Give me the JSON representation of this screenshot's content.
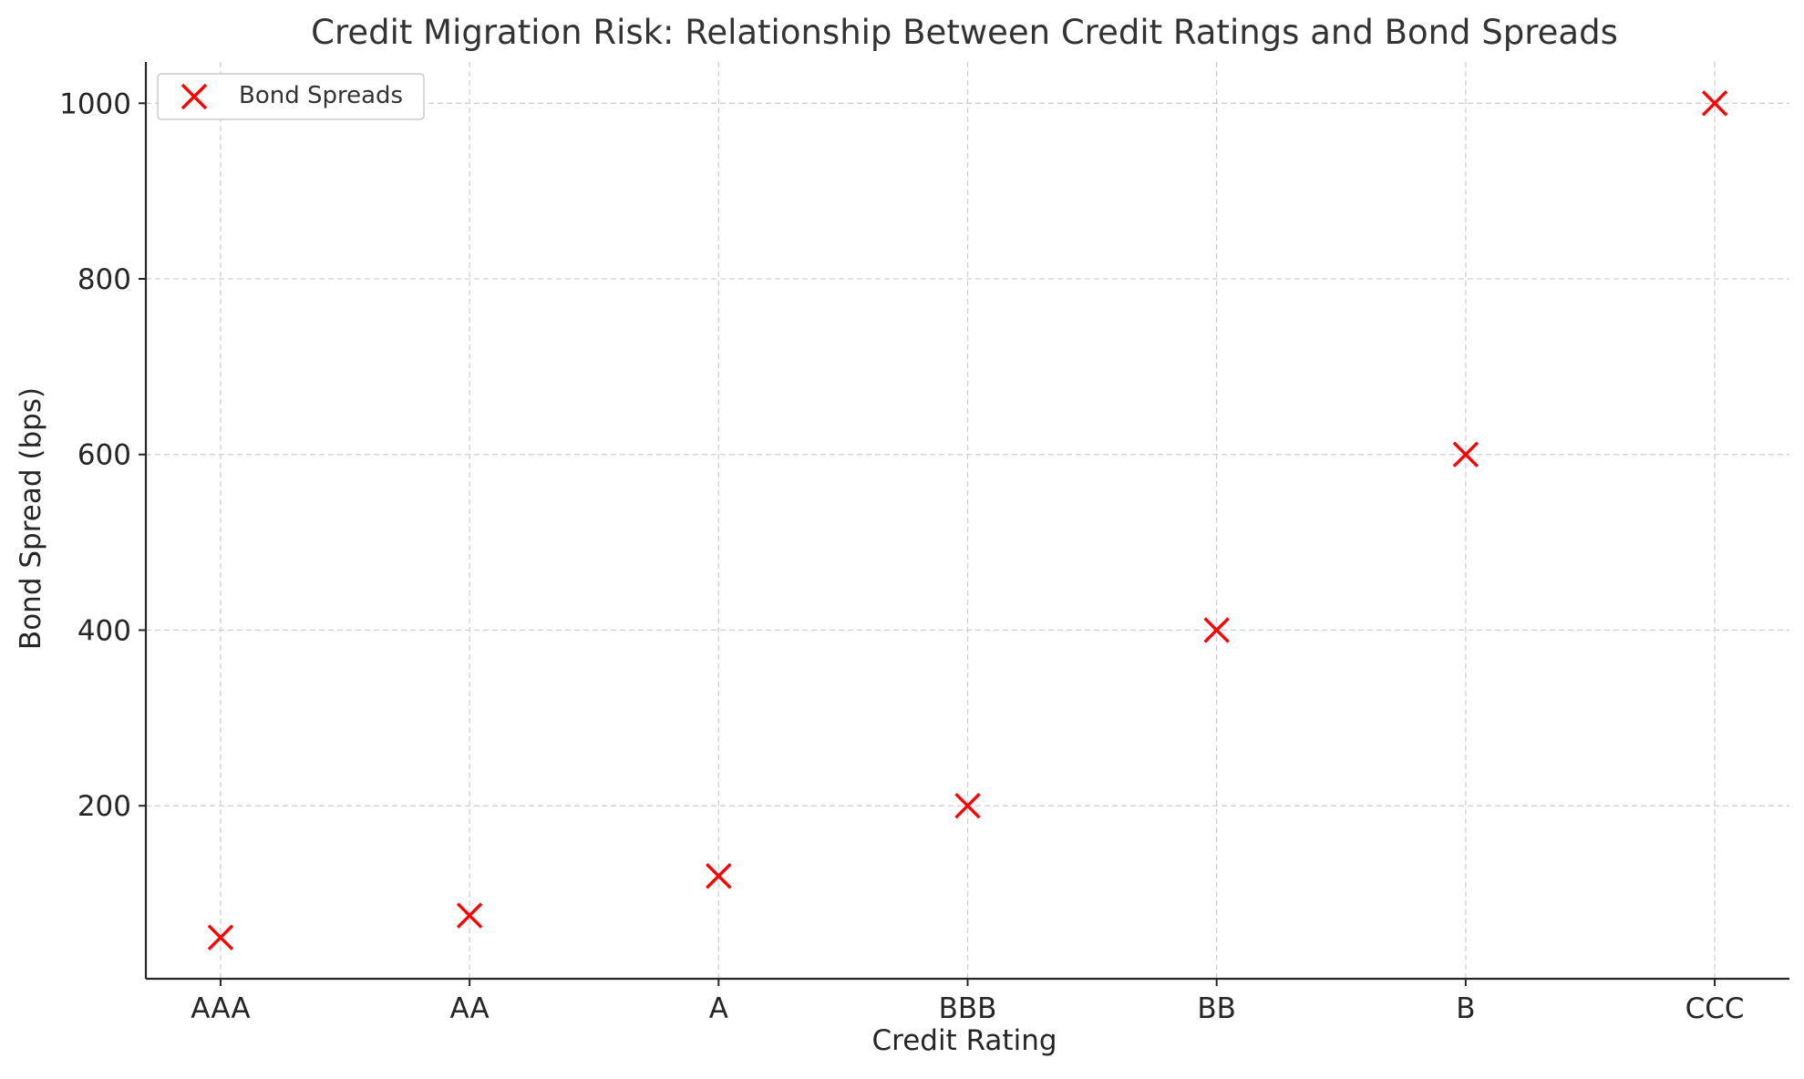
{
  "chart_data": {
    "type": "scatter",
    "title": "Credit Migration Risk: Relationship Between Credit Ratings and Bond Spreads",
    "xlabel": "Credit Rating",
    "ylabel": "Bond Spread (bps)",
    "categories": [
      "AAA",
      "AA",
      "A",
      "BBB",
      "BB",
      "B",
      "CCC"
    ],
    "series": [
      {
        "name": "Bond Spreads",
        "values": [
          50,
          75,
          120,
          200,
          400,
          600,
          1000
        ],
        "marker": "x",
        "color": "#ff0000"
      }
    ],
    "ylim": [
      3,
      1047
    ],
    "yticks": [
      200,
      400,
      600,
      800,
      1000
    ],
    "grid": true,
    "legend_position": "top-left"
  }
}
